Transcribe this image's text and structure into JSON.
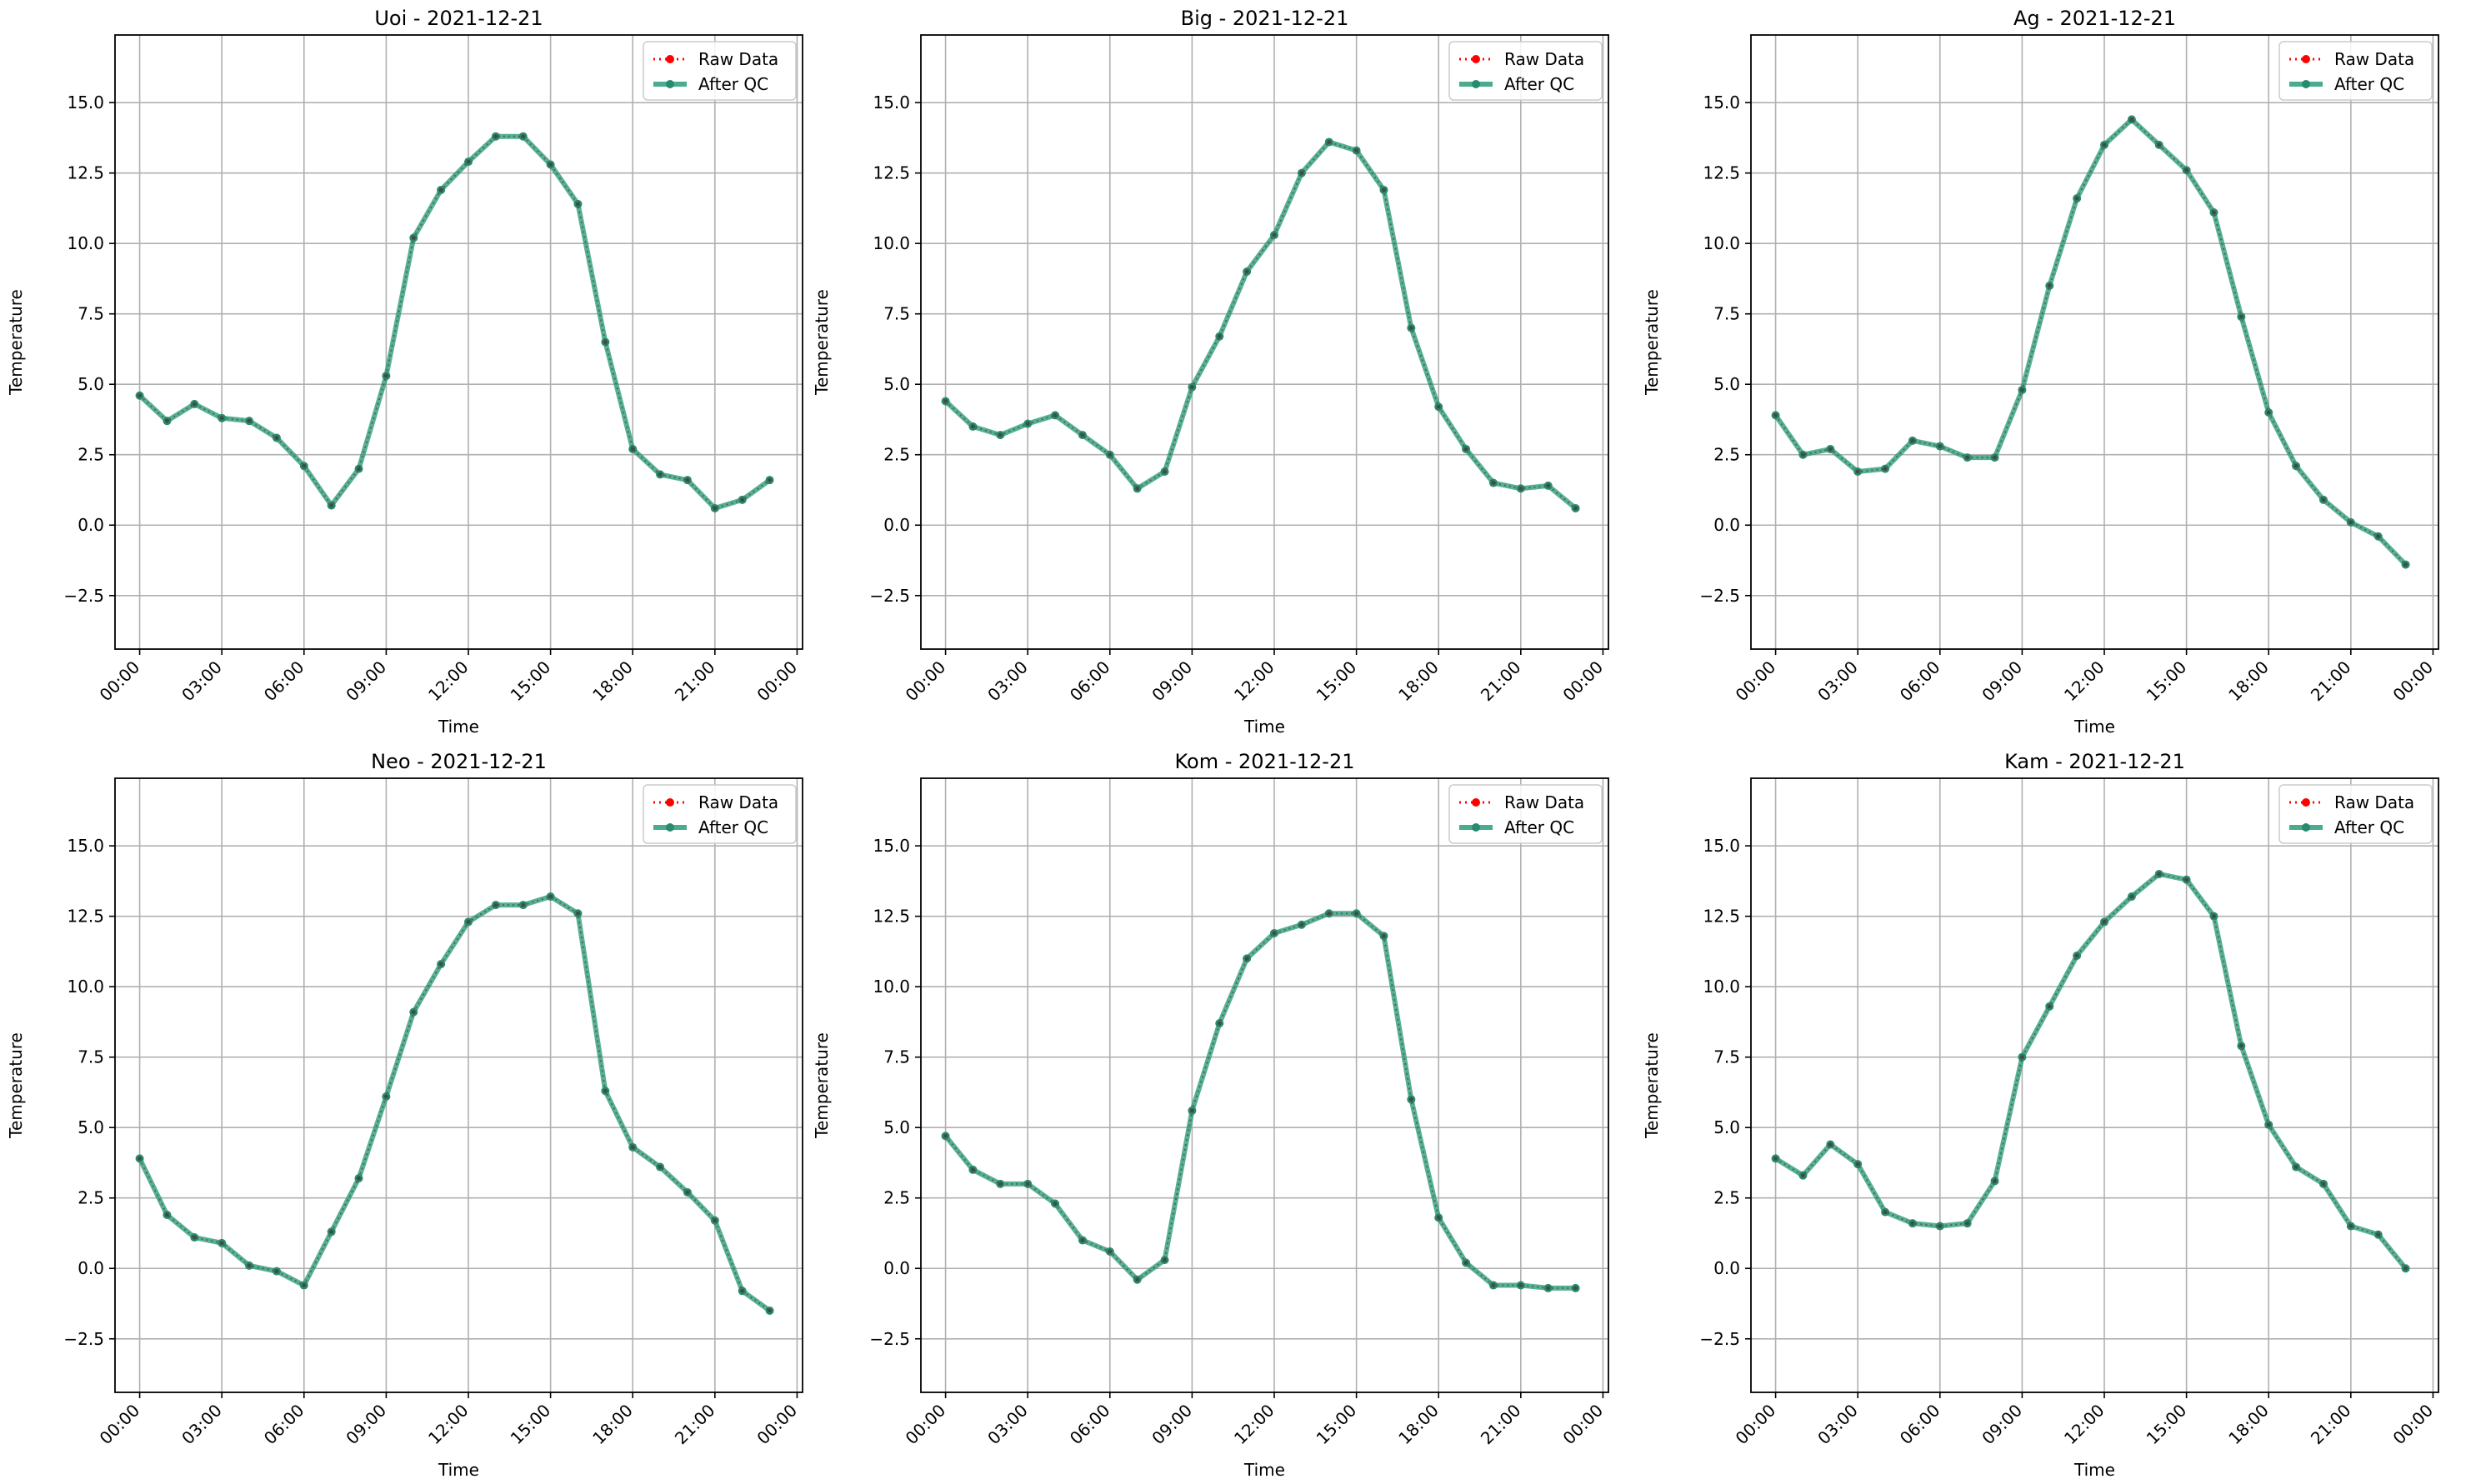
{
  "chart_data": [
    {
      "type": "line",
      "title": "Uoi - 2021-12-21",
      "xlabel": "Time",
      "ylabel": "Temperature",
      "xticks": [
        "00:00",
        "03:00",
        "06:00",
        "09:00",
        "12:00",
        "15:00",
        "18:00",
        "21:00",
        "00:00"
      ],
      "xlim": [
        -0.9,
        24.2
      ],
      "ylim": [
        -4.4,
        17.4
      ],
      "yticks": [
        "−2.5",
        "0.0",
        "2.5",
        "5.0",
        "7.5",
        "10.0",
        "12.5",
        "15.0"
      ],
      "grid": true,
      "legend": "top-right",
      "series": [
        {
          "name": "Raw Data",
          "color": "#ff0000",
          "x": [
            0,
            1,
            2,
            3,
            4,
            5,
            6,
            7,
            8,
            9,
            10,
            11,
            12,
            13,
            14,
            15,
            16,
            17,
            18,
            19,
            20,
            21,
            22,
            23
          ],
          "values": [
            4.6,
            3.7,
            4.3,
            3.8,
            3.7,
            3.1,
            2.1,
            0.7,
            2.0,
            5.3,
            10.2,
            11.9,
            12.9,
            13.8,
            13.8,
            12.8,
            11.4,
            6.5,
            2.7,
            1.8,
            1.6,
            0.6,
            0.9,
            1.6
          ]
        },
        {
          "name": "After QC",
          "color": "#2a9d7a",
          "x": [
            0,
            1,
            2,
            3,
            4,
            5,
            6,
            7,
            8,
            9,
            10,
            11,
            12,
            13,
            14,
            15,
            16,
            17,
            18,
            19,
            20,
            21,
            22,
            23
          ],
          "values": [
            4.6,
            3.7,
            4.3,
            3.8,
            3.7,
            3.1,
            2.1,
            0.7,
            2.0,
            5.3,
            10.2,
            11.9,
            12.9,
            13.8,
            13.8,
            12.8,
            11.4,
            6.5,
            2.7,
            1.8,
            1.6,
            0.6,
            0.9,
            1.6
          ]
        }
      ]
    },
    {
      "type": "line",
      "title": "Big - 2021-12-21",
      "xlabel": "Time",
      "ylabel": "Temperature",
      "xticks": [
        "00:00",
        "03:00",
        "06:00",
        "09:00",
        "12:00",
        "15:00",
        "18:00",
        "21:00",
        "00:00"
      ],
      "xlim": [
        -0.9,
        24.2
      ],
      "ylim": [
        -4.4,
        17.4
      ],
      "yticks": [
        "−2.5",
        "0.0",
        "2.5",
        "5.0",
        "7.5",
        "10.0",
        "12.5",
        "15.0"
      ],
      "grid": true,
      "legend": "top-right",
      "series": [
        {
          "name": "Raw Data",
          "color": "#ff0000",
          "x": [
            0,
            1,
            2,
            3,
            4,
            5,
            6,
            7,
            8,
            9,
            10,
            11,
            12,
            13,
            14,
            15,
            16,
            17,
            18,
            19,
            20,
            21,
            22,
            23
          ],
          "values": [
            4.4,
            3.5,
            3.2,
            3.6,
            3.9,
            3.2,
            2.5,
            1.3,
            1.9,
            4.9,
            6.7,
            9.0,
            10.3,
            12.5,
            13.6,
            13.3,
            11.9,
            7.0,
            4.2,
            2.7,
            1.5,
            1.3,
            1.4,
            0.6
          ]
        },
        {
          "name": "After QC",
          "color": "#2a9d7a",
          "x": [
            0,
            1,
            2,
            3,
            4,
            5,
            6,
            7,
            8,
            9,
            10,
            11,
            12,
            13,
            14,
            15,
            16,
            17,
            18,
            19,
            20,
            21,
            22,
            23
          ],
          "values": [
            4.4,
            3.5,
            3.2,
            3.6,
            3.9,
            3.2,
            2.5,
            1.3,
            1.9,
            4.9,
            6.7,
            9.0,
            10.3,
            12.5,
            13.6,
            13.3,
            11.9,
            7.0,
            4.2,
            2.7,
            1.5,
            1.3,
            1.4,
            0.6
          ]
        }
      ]
    },
    {
      "type": "line",
      "title": "Ag - 2021-12-21",
      "xlabel": "Time",
      "ylabel": "Temperature",
      "xticks": [
        "00:00",
        "03:00",
        "06:00",
        "09:00",
        "12:00",
        "15:00",
        "18:00",
        "21:00",
        "00:00"
      ],
      "xlim": [
        -0.9,
        24.2
      ],
      "ylim": [
        -4.4,
        17.4
      ],
      "yticks": [
        "−2.5",
        "0.0",
        "2.5",
        "5.0",
        "7.5",
        "10.0",
        "12.5",
        "15.0"
      ],
      "grid": true,
      "legend": "top-right",
      "series": [
        {
          "name": "Raw Data",
          "color": "#ff0000",
          "x": [
            0,
            1,
            2,
            3,
            4,
            5,
            6,
            7,
            8,
            9,
            10,
            11,
            12,
            13,
            14,
            15,
            16,
            17,
            18,
            19,
            20,
            21,
            22,
            23
          ],
          "values": [
            3.9,
            2.5,
            2.7,
            1.9,
            2.0,
            3.0,
            2.8,
            2.4,
            2.4,
            4.8,
            8.5,
            11.6,
            13.5,
            14.4,
            13.5,
            12.6,
            11.1,
            7.4,
            4.0,
            2.1,
            0.9,
            0.1,
            -0.4,
            -1.4
          ]
        },
        {
          "name": "After QC",
          "color": "#2a9d7a",
          "x": [
            0,
            1,
            2,
            3,
            4,
            5,
            6,
            7,
            8,
            9,
            10,
            11,
            12,
            13,
            14,
            15,
            16,
            17,
            18,
            19,
            20,
            21,
            22,
            23
          ],
          "values": [
            3.9,
            2.5,
            2.7,
            1.9,
            2.0,
            3.0,
            2.8,
            2.4,
            2.4,
            4.8,
            8.5,
            11.6,
            13.5,
            14.4,
            13.5,
            12.6,
            11.1,
            7.4,
            4.0,
            2.1,
            0.9,
            0.1,
            -0.4,
            -1.4
          ]
        }
      ]
    },
    {
      "type": "line",
      "title": "Neo - 2021-12-21",
      "xlabel": "Time",
      "ylabel": "Temperature",
      "xticks": [
        "00:00",
        "03:00",
        "06:00",
        "09:00",
        "12:00",
        "15:00",
        "18:00",
        "21:00",
        "00:00"
      ],
      "xlim": [
        -0.9,
        24.2
      ],
      "ylim": [
        -4.4,
        17.4
      ],
      "yticks": [
        "−2.5",
        "0.0",
        "2.5",
        "5.0",
        "7.5",
        "10.0",
        "12.5",
        "15.0"
      ],
      "grid": true,
      "legend": "top-right",
      "series": [
        {
          "name": "Raw Data",
          "color": "#ff0000",
          "x": [
            0,
            1,
            2,
            3,
            4,
            5,
            6,
            7,
            8,
            9,
            10,
            11,
            12,
            13,
            14,
            15,
            16,
            17,
            18,
            19,
            20,
            21,
            22,
            23
          ],
          "values": [
            3.9,
            1.9,
            1.1,
            0.9,
            0.1,
            -0.1,
            -0.6,
            1.3,
            3.2,
            6.1,
            9.1,
            10.8,
            12.3,
            12.9,
            12.9,
            13.2,
            12.6,
            6.3,
            4.3,
            3.6,
            2.7,
            1.7,
            -0.8,
            -1.5
          ]
        },
        {
          "name": "After QC",
          "color": "#2a9d7a",
          "x": [
            0,
            1,
            2,
            3,
            4,
            5,
            6,
            7,
            8,
            9,
            10,
            11,
            12,
            13,
            14,
            15,
            16,
            17,
            18,
            19,
            20,
            21,
            22,
            23
          ],
          "values": [
            3.9,
            1.9,
            1.1,
            0.9,
            0.1,
            -0.1,
            -0.6,
            1.3,
            3.2,
            6.1,
            9.1,
            10.8,
            12.3,
            12.9,
            12.9,
            13.2,
            12.6,
            6.3,
            4.3,
            3.6,
            2.7,
            1.7,
            -0.8,
            -1.5
          ]
        }
      ]
    },
    {
      "type": "line",
      "title": "Kom - 2021-12-21",
      "xlabel": "Time",
      "ylabel": "Temperature",
      "xticks": [
        "00:00",
        "03:00",
        "06:00",
        "09:00",
        "12:00",
        "15:00",
        "18:00",
        "21:00",
        "00:00"
      ],
      "xlim": [
        -0.9,
        24.2
      ],
      "ylim": [
        -4.4,
        17.4
      ],
      "yticks": [
        "−2.5",
        "0.0",
        "2.5",
        "5.0",
        "7.5",
        "10.0",
        "12.5",
        "15.0"
      ],
      "grid": true,
      "legend": "top-right",
      "series": [
        {
          "name": "Raw Data",
          "color": "#ff0000",
          "x": [
            0,
            1,
            2,
            3,
            4,
            5,
            6,
            7,
            8,
            9,
            10,
            11,
            12,
            13,
            14,
            15,
            16,
            17,
            18,
            19,
            20,
            21,
            22,
            23
          ],
          "values": [
            4.7,
            3.5,
            3.0,
            3.0,
            2.3,
            1.0,
            0.6,
            -0.4,
            0.3,
            5.6,
            8.7,
            11.0,
            11.9,
            12.2,
            12.6,
            12.6,
            11.8,
            6.0,
            1.8,
            0.2,
            -0.6,
            -0.6,
            -0.7,
            -0.7
          ]
        },
        {
          "name": "After QC",
          "color": "#2a9d7a",
          "x": [
            0,
            1,
            2,
            3,
            4,
            5,
            6,
            7,
            8,
            9,
            10,
            11,
            12,
            13,
            14,
            15,
            16,
            17,
            18,
            19,
            20,
            21,
            22,
            23
          ],
          "values": [
            4.7,
            3.5,
            3.0,
            3.0,
            2.3,
            1.0,
            0.6,
            -0.4,
            0.3,
            5.6,
            8.7,
            11.0,
            11.9,
            12.2,
            12.6,
            12.6,
            11.8,
            6.0,
            1.8,
            0.2,
            -0.6,
            -0.6,
            -0.7,
            -0.7
          ]
        }
      ]
    },
    {
      "type": "line",
      "title": "Kam - 2021-12-21",
      "xlabel": "Time",
      "ylabel": "Temperature",
      "xticks": [
        "00:00",
        "03:00",
        "06:00",
        "09:00",
        "12:00",
        "15:00",
        "18:00",
        "21:00",
        "00:00"
      ],
      "xlim": [
        -0.9,
        24.2
      ],
      "ylim": [
        -4.4,
        17.4
      ],
      "yticks": [
        "−2.5",
        "0.0",
        "2.5",
        "5.0",
        "7.5",
        "10.0",
        "12.5",
        "15.0"
      ],
      "grid": true,
      "legend": "top-right",
      "series": [
        {
          "name": "Raw Data",
          "color": "#ff0000",
          "x": [
            0,
            1,
            2,
            3,
            4,
            5,
            6,
            7,
            8,
            9,
            10,
            11,
            12,
            13,
            14,
            15,
            16,
            17,
            18,
            19,
            20,
            21,
            22,
            23
          ],
          "values": [
            3.9,
            3.3,
            4.4,
            3.7,
            2.0,
            1.6,
            1.5,
            1.6,
            3.1,
            7.5,
            9.3,
            11.1,
            12.3,
            13.2,
            14.0,
            13.8,
            12.5,
            7.9,
            5.1,
            3.6,
            3.0,
            1.5,
            1.2,
            0.0
          ]
        },
        {
          "name": "After QC",
          "color": "#2a9d7a",
          "x": [
            0,
            1,
            2,
            3,
            4,
            5,
            6,
            7,
            8,
            9,
            10,
            11,
            12,
            13,
            14,
            15,
            16,
            17,
            18,
            19,
            20,
            21,
            22,
            23
          ],
          "values": [
            3.9,
            3.3,
            4.4,
            3.7,
            2.0,
            1.6,
            1.5,
            1.6,
            3.1,
            7.5,
            9.3,
            11.1,
            12.3,
            13.2,
            14.0,
            13.8,
            12.5,
            7.9,
            5.1,
            3.6,
            3.0,
            1.5,
            1.2,
            0.0
          ]
        }
      ]
    }
  ]
}
